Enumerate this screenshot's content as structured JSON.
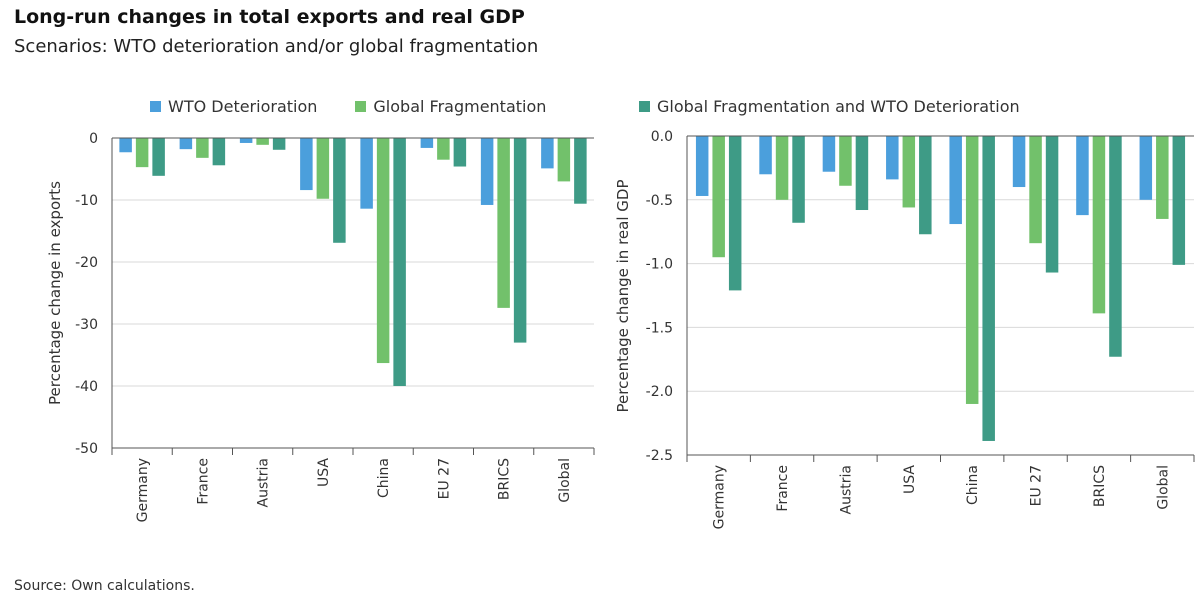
{
  "title": "Long-run changes in total exports and real GDP",
  "subtitle": "Scenarios: WTO deterioration and/or global fragmentation",
  "source": "Source: Own calculations.",
  "colors": {
    "wto": "#4b9fdc",
    "frag": "#72c16b",
    "both": "#3e9b86",
    "grid": "#d9d9d9",
    "axis": "#555555"
  },
  "legend": {
    "left": [
      {
        "label": "WTO Deterioration",
        "color": "#4b9fdc"
      },
      {
        "label": "Global Fragmentation",
        "color": "#72c16b"
      }
    ],
    "right": [
      {
        "label": "Global Fragmentation and WTO Deterioration",
        "color": "#3e9b86"
      }
    ]
  },
  "chart_data": [
    {
      "type": "bar",
      "categories": [
        "Germany",
        "France",
        "Austria",
        "USA",
        "China",
        "EU 27",
        "BRICS",
        "Global"
      ],
      "series": [
        {
          "name": "WTO Deterioration",
          "values": [
            -2.3,
            -1.8,
            -0.8,
            -8.4,
            -11.4,
            -1.6,
            -10.8,
            -4.9
          ]
        },
        {
          "name": "Global Fragmentation",
          "values": [
            -4.7,
            -3.2,
            -1.1,
            -9.8,
            -36.3,
            -3.5,
            -27.4,
            -7.0
          ]
        },
        {
          "name": "Global Fragmentation and WTO Deterioration",
          "values": [
            -6.1,
            -4.4,
            -1.9,
            -16.9,
            -40.0,
            -4.6,
            -33.0,
            -10.6
          ]
        }
      ],
      "ylabel": "Percentage change in exports",
      "ylim": [
        -50,
        0
      ],
      "yticks": [
        0,
        -10,
        -20,
        -30,
        -40,
        -50
      ],
      "ytick_labels": [
        "0",
        "-10",
        "-20",
        "-30",
        "-40",
        "-50"
      ],
      "grid": true
    },
    {
      "type": "bar",
      "categories": [
        "Germany",
        "France",
        "Austria",
        "USA",
        "China",
        "EU 27",
        "BRICS",
        "Global"
      ],
      "series": [
        {
          "name": "WTO Deterioration",
          "values": [
            -0.47,
            -0.3,
            -0.28,
            -0.34,
            -0.69,
            -0.4,
            -0.62,
            -0.5
          ]
        },
        {
          "name": "Global Fragmentation",
          "values": [
            -0.95,
            -0.5,
            -0.39,
            -0.56,
            -2.1,
            -0.84,
            -1.39,
            -0.65
          ]
        },
        {
          "name": "Global Fragmentation and WTO Deterioration",
          "values": [
            -1.21,
            -0.68,
            -0.58,
            -0.77,
            -2.39,
            -1.07,
            -1.73,
            -1.01
          ]
        }
      ],
      "ylabel": "Percentage change in real GDP",
      "ylim": [
        -2.5,
        0
      ],
      "yticks": [
        0,
        -0.5,
        -1.0,
        -1.5,
        -2.0,
        -2.5
      ],
      "ytick_labels": [
        "0.0",
        "-0.5",
        "-1.0",
        "-1.5",
        "-2.0",
        "-2.5"
      ],
      "grid": true
    }
  ]
}
